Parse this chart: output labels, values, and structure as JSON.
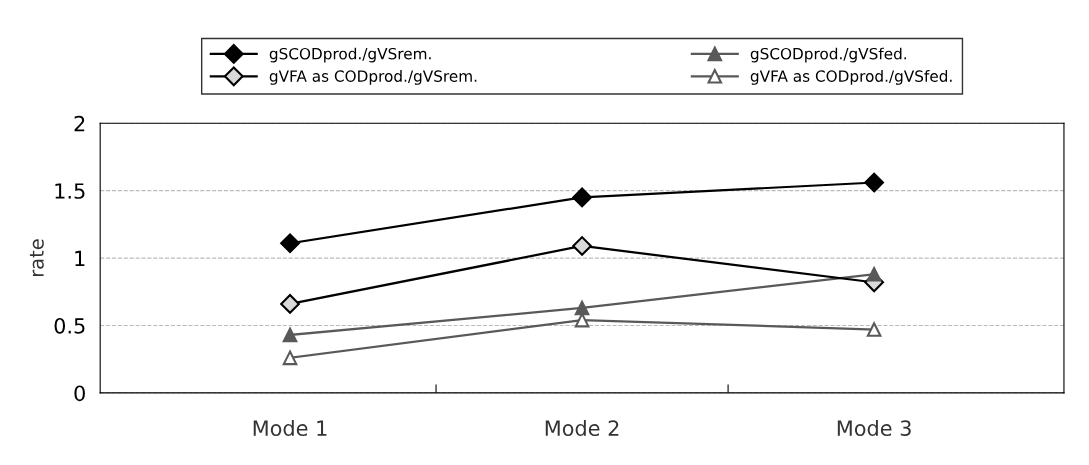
{
  "chart_data": {
    "type": "line",
    "ylabel": "rate",
    "categories": [
      "Mode 1",
      "Mode 2",
      "Mode 3"
    ],
    "series": [
      {
        "name": "gSCODprod./gVSrem.",
        "color": "#000000",
        "marker": "diamond",
        "colors": [
          "#000000",
          "#000000",
          "#000000"
        ],
        "values": [
          1.11,
          1.45,
          1.56
        ]
      },
      {
        "name": "gSCODprod./gVSfed.",
        "color": "#595959",
        "marker": "triangle",
        "colors": [
          "#595959",
          "#595959",
          "#595959"
        ],
        "values": [
          0.43,
          0.63,
          0.88
        ]
      },
      {
        "name": "gVFA as CODprod./gVSrem.",
        "color": "#000000",
        "marker": "diamond",
        "colors": [
          "#d9d9d9",
          "#d9d9d9",
          "#d9d9d9"
        ],
        "values": [
          0.66,
          1.09,
          0.82
        ]
      },
      {
        "name": "gVFA as CODprod./gVSfed.",
        "color": "#595959",
        "marker": "triangle",
        "colors": [
          "#ffffff",
          "#ffffff",
          "#ffffff"
        ],
        "values": [
          0.26,
          0.54,
          0.47
        ]
      }
    ],
    "ylim": [
      0,
      2
    ],
    "yticks": [
      0,
      0.5,
      1,
      1.5,
      2
    ],
    "grid": "y",
    "legend": "top",
    "line_style": "solid"
  }
}
